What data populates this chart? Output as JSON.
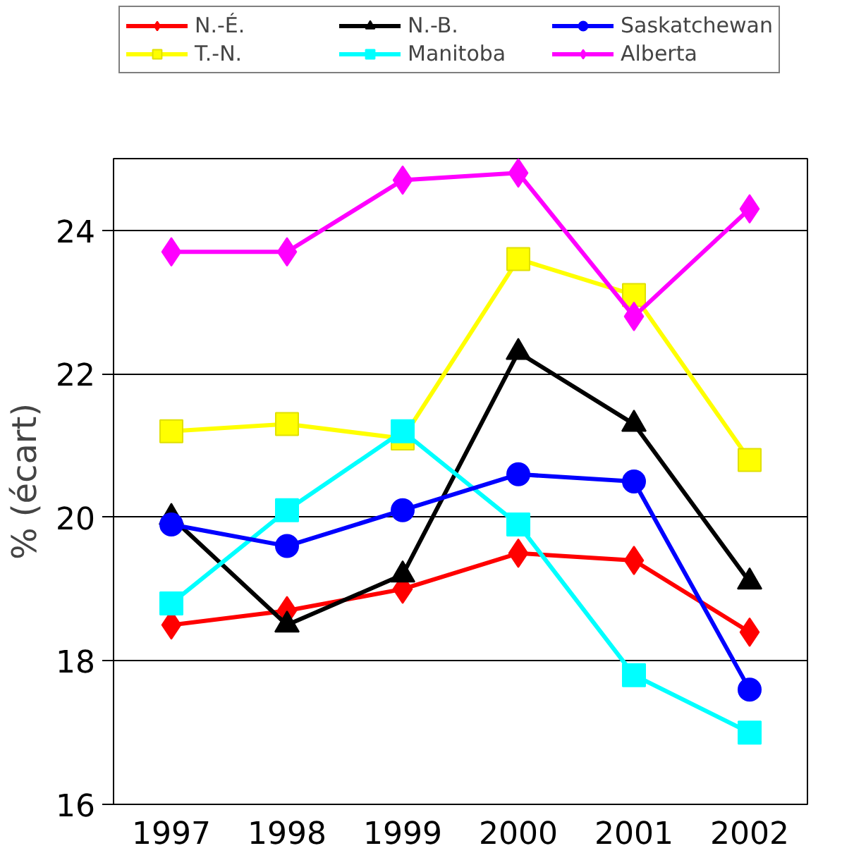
{
  "chart_data": {
    "type": "line",
    "ylabel": "% (écart)",
    "categories": [
      "1997",
      "1998",
      "1999",
      "2000",
      "2001",
      "2002"
    ],
    "ylim": [
      16,
      25
    ],
    "yticks": [
      16,
      18,
      20,
      22,
      24
    ],
    "grid": "y",
    "legend": "top",
    "line_style": "solid",
    "series": [
      {
        "name": "N.-É.",
        "color": "#ff0000",
        "marker": "diamond",
        "values": [
          18.5,
          18.7,
          19.0,
          19.5,
          19.4,
          18.4
        ]
      },
      {
        "name": "T.-N.",
        "color": "#ffff00",
        "marker": "square",
        "values": [
          21.2,
          21.3,
          21.1,
          23.6,
          23.1,
          20.8
        ]
      },
      {
        "name": "N.-B.",
        "color": "#000000",
        "marker": "triangle",
        "values": [
          20.0,
          18.5,
          19.2,
          22.3,
          21.3,
          19.1
        ]
      },
      {
        "name": "Manitoba",
        "color": "#00ffff",
        "marker": "square",
        "values": [
          18.8,
          20.1,
          21.2,
          19.9,
          17.8,
          17.0
        ]
      },
      {
        "name": "Saskatchewan",
        "color": "#0000ff",
        "marker": "circle",
        "values": [
          19.9,
          19.6,
          20.1,
          20.6,
          20.5,
          17.6
        ]
      },
      {
        "name": "Alberta",
        "color": "#ff00ff",
        "marker": "diamond",
        "values": [
          23.7,
          23.7,
          24.7,
          24.8,
          22.8,
          24.3
        ]
      }
    ]
  }
}
